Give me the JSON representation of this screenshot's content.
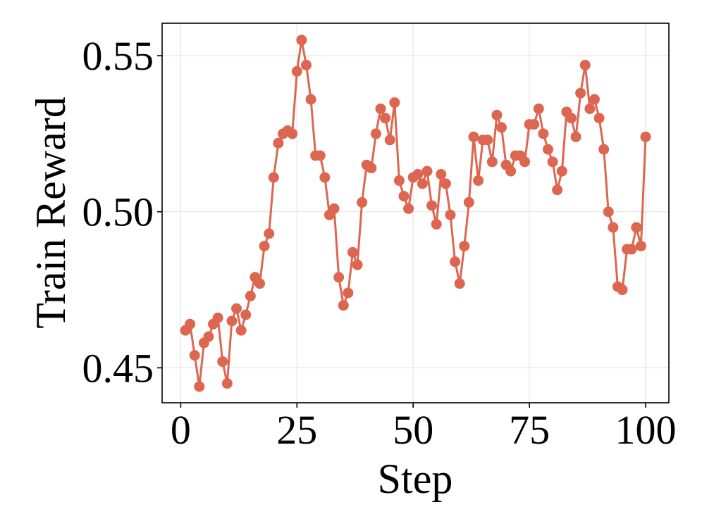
{
  "chart_data": {
    "type": "line",
    "title": "",
    "xlabel": "Step",
    "ylabel": "Train Reward",
    "xlim": [
      -4,
      105
    ],
    "ylim": [
      0.4388,
      0.5604
    ],
    "xticks": [
      0,
      25,
      50,
      75,
      100
    ],
    "xtick_labels": [
      "0",
      "25",
      "50",
      "75",
      "100"
    ],
    "yticks": [
      0.45,
      0.5,
      0.55
    ],
    "ytick_labels": [
      "0.45",
      "0.50",
      "0.55"
    ],
    "grid": true,
    "color": "#dd6650",
    "series": [
      {
        "x": [
          1,
          2,
          3,
          4,
          5,
          6,
          7,
          8,
          9,
          10,
          11,
          12,
          13,
          14,
          15,
          16,
          17,
          18,
          19,
          20,
          21,
          22,
          23,
          24,
          25,
          26,
          27,
          28,
          29,
          30,
          31,
          32,
          33,
          34,
          35,
          36,
          37,
          38,
          39,
          40,
          41,
          42,
          43,
          44,
          45,
          46,
          47,
          48,
          49,
          50,
          51,
          52,
          53,
          54,
          55,
          56,
          57,
          58,
          59,
          60,
          61,
          62,
          63,
          64,
          65,
          66,
          67,
          68,
          69,
          70,
          71,
          72,
          73,
          74,
          75,
          76,
          77,
          78,
          79,
          80,
          81,
          82,
          83,
          84,
          85,
          86,
          87,
          88,
          89,
          90,
          91,
          92,
          93,
          94,
          95,
          96,
          97,
          98,
          99,
          100
        ],
        "values": [
          0.462,
          0.464,
          0.454,
          0.444,
          0.458,
          0.46,
          0.464,
          0.466,
          0.452,
          0.445,
          0.465,
          0.469,
          0.462,
          0.467,
          0.473,
          0.479,
          0.477,
          0.489,
          0.493,
          0.511,
          0.522,
          0.525,
          0.526,
          0.525,
          0.545,
          0.555,
          0.547,
          0.536,
          0.518,
          0.518,
          0.511,
          0.499,
          0.501,
          0.479,
          0.47,
          0.474,
          0.487,
          0.483,
          0.503,
          0.515,
          0.514,
          0.525,
          0.533,
          0.53,
          0.523,
          0.535,
          0.51,
          0.505,
          0.501,
          0.511,
          0.512,
          0.509,
          0.513,
          0.502,
          0.496,
          0.512,
          0.509,
          0.499,
          0.484,
          0.477,
          0.489,
          0.503,
          0.524,
          0.51,
          0.523,
          0.523,
          0.516,
          0.531,
          0.527,
          0.515,
          0.513,
          0.518,
          0.518,
          0.516,
          0.528,
          0.528,
          0.533,
          0.525,
          0.52,
          0.516,
          0.507,
          0.513,
          0.532,
          0.53,
          0.524,
          0.538,
          0.547,
          0.533,
          0.536,
          0.53,
          0.52,
          0.5,
          0.495,
          0.476,
          0.475,
          0.488,
          0.488,
          0.495,
          0.489,
          0.524
        ]
      }
    ]
  }
}
